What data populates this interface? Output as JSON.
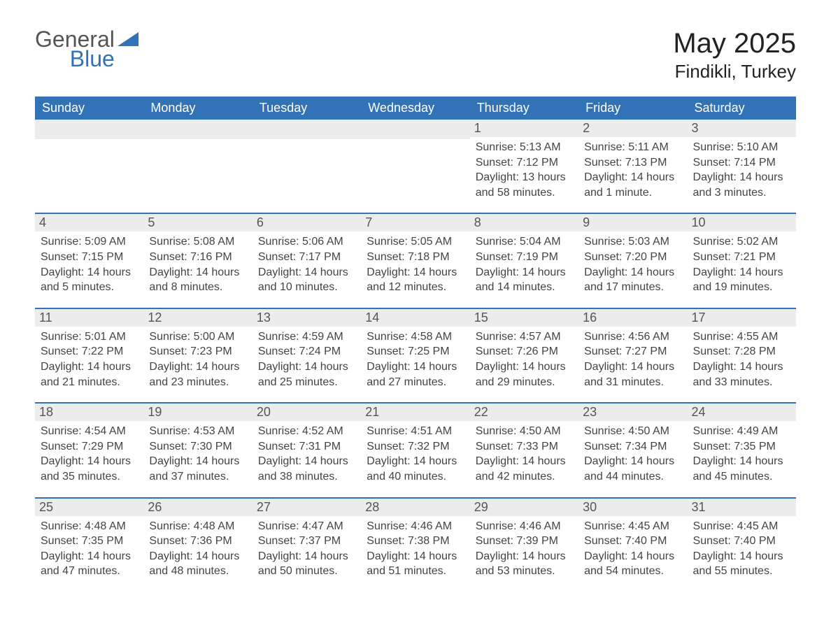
{
  "brand": {
    "general": "General",
    "blue": "Blue",
    "logo_color": "#3273b8"
  },
  "title": {
    "month": "May 2025",
    "location": "Findikli, Turkey"
  },
  "colors": {
    "header_bg": "#3273b8",
    "header_text": "#ffffff",
    "daybar_bg": "#ececec",
    "daybar_border": "#3273b8",
    "text": "#444444",
    "background": "#ffffff"
  },
  "calendar": {
    "day_headers": [
      "Sunday",
      "Monday",
      "Tuesday",
      "Wednesday",
      "Thursday",
      "Friday",
      "Saturday"
    ],
    "weeks": [
      [
        null,
        null,
        null,
        null,
        {
          "num": "1",
          "sunrise": "Sunrise: 5:13 AM",
          "sunset": "Sunset: 7:12 PM",
          "daylight": "Daylight: 13 hours and 58 minutes."
        },
        {
          "num": "2",
          "sunrise": "Sunrise: 5:11 AM",
          "sunset": "Sunset: 7:13 PM",
          "daylight": "Daylight: 14 hours and 1 minute."
        },
        {
          "num": "3",
          "sunrise": "Sunrise: 5:10 AM",
          "sunset": "Sunset: 7:14 PM",
          "daylight": "Daylight: 14 hours and 3 minutes."
        }
      ],
      [
        {
          "num": "4",
          "sunrise": "Sunrise: 5:09 AM",
          "sunset": "Sunset: 7:15 PM",
          "daylight": "Daylight: 14 hours and 5 minutes."
        },
        {
          "num": "5",
          "sunrise": "Sunrise: 5:08 AM",
          "sunset": "Sunset: 7:16 PM",
          "daylight": "Daylight: 14 hours and 8 minutes."
        },
        {
          "num": "6",
          "sunrise": "Sunrise: 5:06 AM",
          "sunset": "Sunset: 7:17 PM",
          "daylight": "Daylight: 14 hours and 10 minutes."
        },
        {
          "num": "7",
          "sunrise": "Sunrise: 5:05 AM",
          "sunset": "Sunset: 7:18 PM",
          "daylight": "Daylight: 14 hours and 12 minutes."
        },
        {
          "num": "8",
          "sunrise": "Sunrise: 5:04 AM",
          "sunset": "Sunset: 7:19 PM",
          "daylight": "Daylight: 14 hours and 14 minutes."
        },
        {
          "num": "9",
          "sunrise": "Sunrise: 5:03 AM",
          "sunset": "Sunset: 7:20 PM",
          "daylight": "Daylight: 14 hours and 17 minutes."
        },
        {
          "num": "10",
          "sunrise": "Sunrise: 5:02 AM",
          "sunset": "Sunset: 7:21 PM",
          "daylight": "Daylight: 14 hours and 19 minutes."
        }
      ],
      [
        {
          "num": "11",
          "sunrise": "Sunrise: 5:01 AM",
          "sunset": "Sunset: 7:22 PM",
          "daylight": "Daylight: 14 hours and 21 minutes."
        },
        {
          "num": "12",
          "sunrise": "Sunrise: 5:00 AM",
          "sunset": "Sunset: 7:23 PM",
          "daylight": "Daylight: 14 hours and 23 minutes."
        },
        {
          "num": "13",
          "sunrise": "Sunrise: 4:59 AM",
          "sunset": "Sunset: 7:24 PM",
          "daylight": "Daylight: 14 hours and 25 minutes."
        },
        {
          "num": "14",
          "sunrise": "Sunrise: 4:58 AM",
          "sunset": "Sunset: 7:25 PM",
          "daylight": "Daylight: 14 hours and 27 minutes."
        },
        {
          "num": "15",
          "sunrise": "Sunrise: 4:57 AM",
          "sunset": "Sunset: 7:26 PM",
          "daylight": "Daylight: 14 hours and 29 minutes."
        },
        {
          "num": "16",
          "sunrise": "Sunrise: 4:56 AM",
          "sunset": "Sunset: 7:27 PM",
          "daylight": "Daylight: 14 hours and 31 minutes."
        },
        {
          "num": "17",
          "sunrise": "Sunrise: 4:55 AM",
          "sunset": "Sunset: 7:28 PM",
          "daylight": "Daylight: 14 hours and 33 minutes."
        }
      ],
      [
        {
          "num": "18",
          "sunrise": "Sunrise: 4:54 AM",
          "sunset": "Sunset: 7:29 PM",
          "daylight": "Daylight: 14 hours and 35 minutes."
        },
        {
          "num": "19",
          "sunrise": "Sunrise: 4:53 AM",
          "sunset": "Sunset: 7:30 PM",
          "daylight": "Daylight: 14 hours and 37 minutes."
        },
        {
          "num": "20",
          "sunrise": "Sunrise: 4:52 AM",
          "sunset": "Sunset: 7:31 PM",
          "daylight": "Daylight: 14 hours and 38 minutes."
        },
        {
          "num": "21",
          "sunrise": "Sunrise: 4:51 AM",
          "sunset": "Sunset: 7:32 PM",
          "daylight": "Daylight: 14 hours and 40 minutes."
        },
        {
          "num": "22",
          "sunrise": "Sunrise: 4:50 AM",
          "sunset": "Sunset: 7:33 PM",
          "daylight": "Daylight: 14 hours and 42 minutes."
        },
        {
          "num": "23",
          "sunrise": "Sunrise: 4:50 AM",
          "sunset": "Sunset: 7:34 PM",
          "daylight": "Daylight: 14 hours and 44 minutes."
        },
        {
          "num": "24",
          "sunrise": "Sunrise: 4:49 AM",
          "sunset": "Sunset: 7:35 PM",
          "daylight": "Daylight: 14 hours and 45 minutes."
        }
      ],
      [
        {
          "num": "25",
          "sunrise": "Sunrise: 4:48 AM",
          "sunset": "Sunset: 7:35 PM",
          "daylight": "Daylight: 14 hours and 47 minutes."
        },
        {
          "num": "26",
          "sunrise": "Sunrise: 4:48 AM",
          "sunset": "Sunset: 7:36 PM",
          "daylight": "Daylight: 14 hours and 48 minutes."
        },
        {
          "num": "27",
          "sunrise": "Sunrise: 4:47 AM",
          "sunset": "Sunset: 7:37 PM",
          "daylight": "Daylight: 14 hours and 50 minutes."
        },
        {
          "num": "28",
          "sunrise": "Sunrise: 4:46 AM",
          "sunset": "Sunset: 7:38 PM",
          "daylight": "Daylight: 14 hours and 51 minutes."
        },
        {
          "num": "29",
          "sunrise": "Sunrise: 4:46 AM",
          "sunset": "Sunset: 7:39 PM",
          "daylight": "Daylight: 14 hours and 53 minutes."
        },
        {
          "num": "30",
          "sunrise": "Sunrise: 4:45 AM",
          "sunset": "Sunset: 7:40 PM",
          "daylight": "Daylight: 14 hours and 54 minutes."
        },
        {
          "num": "31",
          "sunrise": "Sunrise: 4:45 AM",
          "sunset": "Sunset: 7:40 PM",
          "daylight": "Daylight: 14 hours and 55 minutes."
        }
      ]
    ]
  }
}
